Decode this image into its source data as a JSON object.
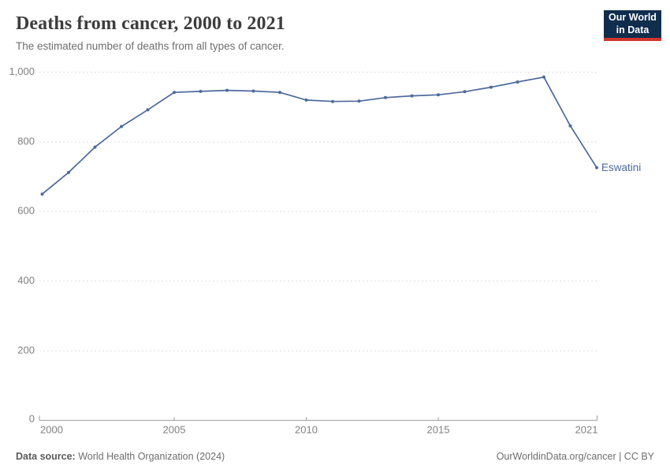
{
  "header": {
    "title": "Deaths from cancer, 2000 to 2021",
    "subtitle": "The estimated number of deaths from all types of cancer."
  },
  "logo": {
    "line1": "Our World",
    "line2": "in Data",
    "bg_color": "#102d4e",
    "accent_color": "#d0342c"
  },
  "chart_data": {
    "type": "line",
    "title": "Deaths from cancer, 2000 to 2021",
    "xlabel": "",
    "ylabel": "",
    "xlim": [
      2000,
      2021
    ],
    "ylim": [
      0,
      1000
    ],
    "grid": "horizontal-dashed",
    "legend_position": "end-of-line-label",
    "x_ticks": [
      {
        "value": 2000,
        "label": "2000"
      },
      {
        "value": 2005,
        "label": "2005"
      },
      {
        "value": 2010,
        "label": "2010"
      },
      {
        "value": 2015,
        "label": "2015"
      },
      {
        "value": 2021,
        "label": "2021"
      }
    ],
    "y_ticks": [
      {
        "value": 0,
        "label": "0"
      },
      {
        "value": 200,
        "label": "200"
      },
      {
        "value": 400,
        "label": "400"
      },
      {
        "value": 600,
        "label": "600"
      },
      {
        "value": 800,
        "label": "800"
      },
      {
        "value": 1000,
        "label": "1,000"
      }
    ],
    "series": [
      {
        "name": "Eswatini",
        "color": "#4c6a9c",
        "x": [
          2000,
          2001,
          2002,
          2003,
          2004,
          2005,
          2006,
          2007,
          2008,
          2009,
          2010,
          2011,
          2012,
          2013,
          2014,
          2015,
          2016,
          2017,
          2018,
          2019,
          2020,
          2021
        ],
        "values": [
          650,
          712,
          785,
          844,
          892,
          942,
          945,
          948,
          946,
          942,
          920,
          916,
          917,
          927,
          932,
          935,
          944,
          957,
          972,
          986,
          846,
          726
        ]
      }
    ]
  },
  "colors": {
    "grid": "#dedede",
    "axis": "#999999",
    "tick_label": "#818181",
    "title": "#3d3d3d",
    "subtitle": "#6e6e6e"
  },
  "footer": {
    "source_label": "Data source:",
    "source_value": "World Health Organization (2024)",
    "attribution": "OurWorldinData.org/cancer | CC BY"
  }
}
